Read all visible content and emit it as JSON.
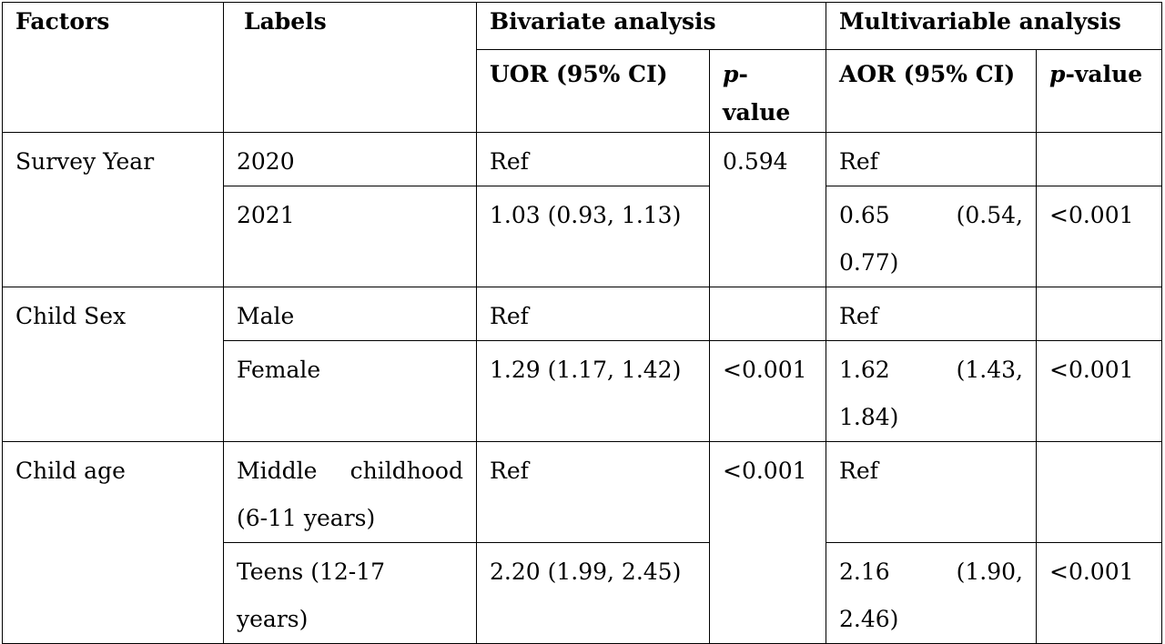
{
  "header": {
    "factors": "Factors",
    "labels": "Labels",
    "bivariate": "Bivariate analysis",
    "multivariable": "Multivariable analysis",
    "uor": "UOR (95% CI)",
    "aor": "AOR (95% CI)",
    "p_italic": "p",
    "p_suffix": "-value"
  },
  "rows": {
    "survey_year": {
      "factor": "Survey Year",
      "r1": {
        "label": "2020",
        "uor": "Ref",
        "aor": "Ref",
        "ap": ""
      },
      "r2": {
        "label": "2021",
        "uor": "1.03 (0.93, 1.13)",
        "aor": "0.65 (0.54, 0.77)",
        "ap": "<0.001"
      },
      "up": "0.594"
    },
    "child_sex": {
      "factor": "Child Sex",
      "r1": {
        "label": "Male",
        "uor": "Ref",
        "up": "",
        "aor": "Ref",
        "ap": ""
      },
      "r2": {
        "label": "Female",
        "uor": "1.29 (1.17, 1.42)",
        "up": "<0.001",
        "aor": "1.62 (1.43, 1.84)",
        "ap": "<0.001"
      }
    },
    "child_age": {
      "factor": "Child age",
      "r1": {
        "label": "Middle childhood (6-11 years)",
        "uor": "Ref",
        "aor": "Ref",
        "ap": ""
      },
      "r2": {
        "label": "Teens (12-17 years)",
        "uor": "2.20 (1.99, 2.45)",
        "aor": "2.16 (1.90, 2.46)",
        "ap": "<0.001"
      },
      "up": "<0.001"
    }
  }
}
